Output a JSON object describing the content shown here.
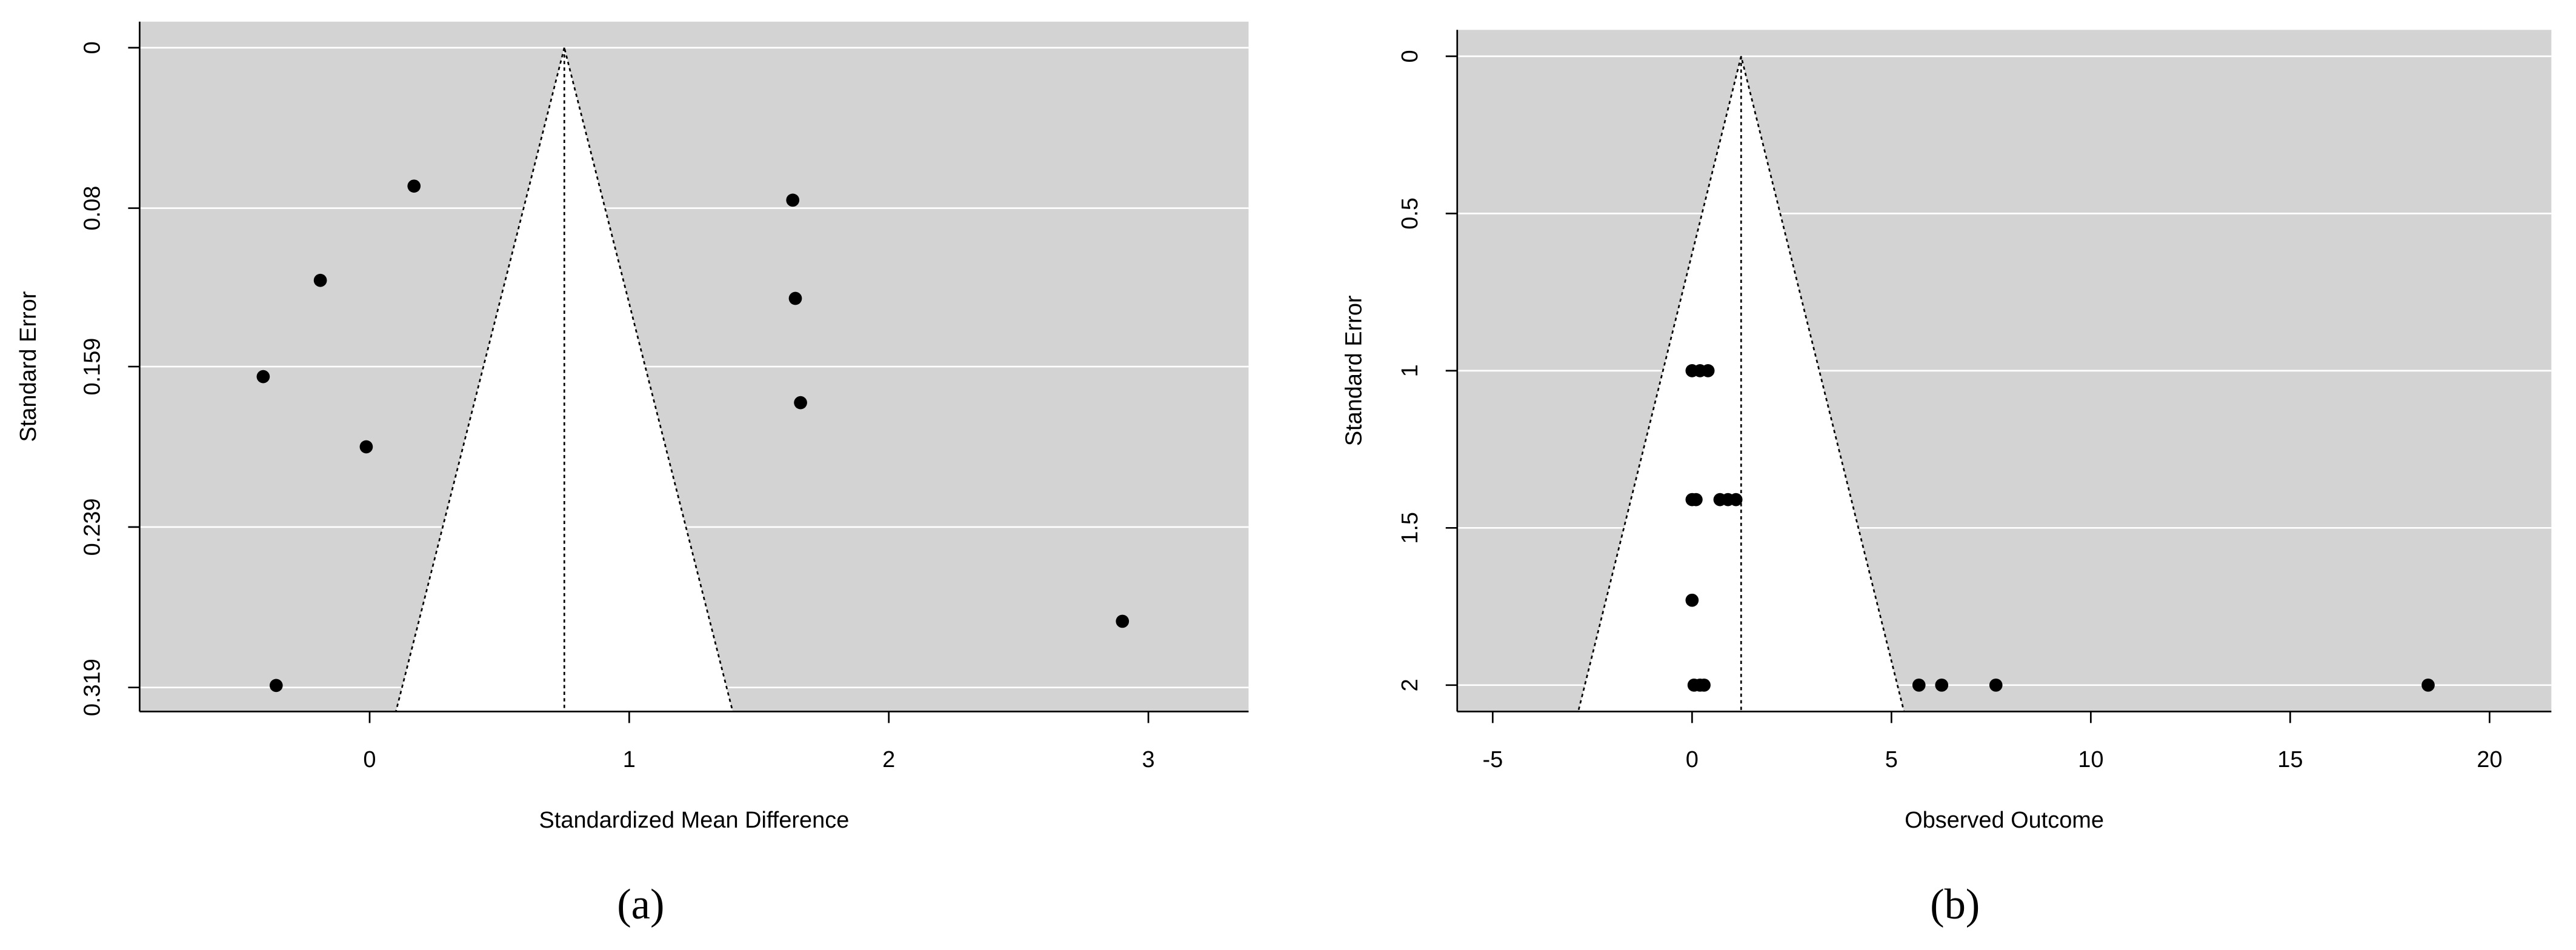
{
  "chart_data": [
    {
      "type": "funnel",
      "caption": "(a)",
      "xlabel": "Standardized Mean Difference",
      "ylabel": "Standard Error",
      "xlim": [
        -0.886,
        3.386
      ],
      "ylim": [
        0.331,
        -0.013
      ],
      "xticks": [
        0,
        1,
        2,
        3
      ],
      "yticks": [
        0,
        0.08,
        0.159,
        0.239,
        0.319
      ],
      "center": 0.75,
      "grid": true,
      "background": "#d3d3d3",
      "color": "#000000",
      "x": [
        0.171,
        -0.19,
        -0.41,
        -0.013,
        -0.36,
        1.63,
        1.64,
        1.66,
        2.9
      ],
      "y": [
        0.069,
        0.116,
        0.164,
        0.199,
        0.318,
        0.076,
        0.125,
        0.177,
        0.286
      ]
    },
    {
      "type": "funnel",
      "caption": "(b)",
      "xlabel": "Observed Outcome",
      "ylabel": "Standard Error",
      "xlim": [
        -5.89,
        21.55
      ],
      "ylim": [
        2.084,
        -0.084
      ],
      "xticks": [
        -5,
        0,
        5,
        10,
        15,
        20
      ],
      "yticks": [
        0,
        0.5,
        1,
        1.5,
        2
      ],
      "center": 1.23,
      "grid": true,
      "background": "#d3d3d3",
      "color": "#000000",
      "x": [
        0,
        0.2,
        0.4,
        0,
        0.1,
        0.7,
        0.9,
        1.1,
        0,
        0.05,
        0.2,
        0.3,
        5.69,
        6.26,
        7.62,
        18.46
      ],
      "y": [
        1,
        1,
        1,
        1.41,
        1.41,
        1.41,
        1.41,
        1.41,
        1.73,
        2,
        2,
        2,
        2,
        2,
        2,
        2
      ]
    }
  ]
}
